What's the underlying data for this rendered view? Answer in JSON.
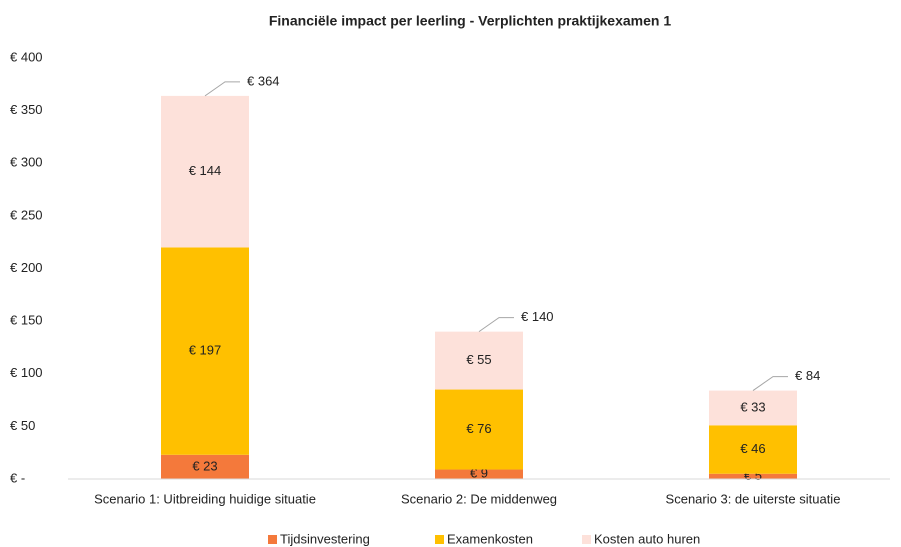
{
  "chart_data": {
    "type": "stacked_bar",
    "title": "Financiële impact per leerling - Verplichten praktijkexamen 1",
    "categories": [
      "Scenario 1: Uitbreiding huidige situatie",
      "Scenario 2: De middenweg",
      "Scenario 3: de uiterste situatie"
    ],
    "series": [
      {
        "name": "Tijdsinvestering",
        "color": "#f4793b",
        "values": [
          23,
          9,
          5
        ],
        "value_labels": [
          "€ 23",
          "€ 9",
          "€ 5"
        ]
      },
      {
        "name": "Examenkosten",
        "color": "#ffc000",
        "values": [
          197,
          76,
          46
        ],
        "value_labels": [
          "€ 197",
          "€ 76",
          "€ 46"
        ]
      },
      {
        "name": "Kosten auto huren",
        "color": "#fde1da",
        "values": [
          144,
          55,
          33
        ],
        "value_labels": [
          "€ 144",
          "€ 55",
          "€ 33"
        ]
      }
    ],
    "total_labels": [
      "€ 364",
      "€ 140",
      "€ 84"
    ],
    "ylim": [
      0,
      400
    ],
    "yticks": [
      {
        "value": 0,
        "label": "€ -"
      },
      {
        "value": 50,
        "label": "€ 50"
      },
      {
        "value": 100,
        "label": "€ 100"
      },
      {
        "value": 150,
        "label": "€ 150"
      },
      {
        "value": 200,
        "label": "€ 200"
      },
      {
        "value": 250,
        "label": "€ 250"
      },
      {
        "value": 300,
        "label": "€ 300"
      },
      {
        "value": 350,
        "label": "€ 350"
      },
      {
        "value": 400,
        "label": "€ 400"
      }
    ],
    "grid": false,
    "legend": "bottom"
  }
}
